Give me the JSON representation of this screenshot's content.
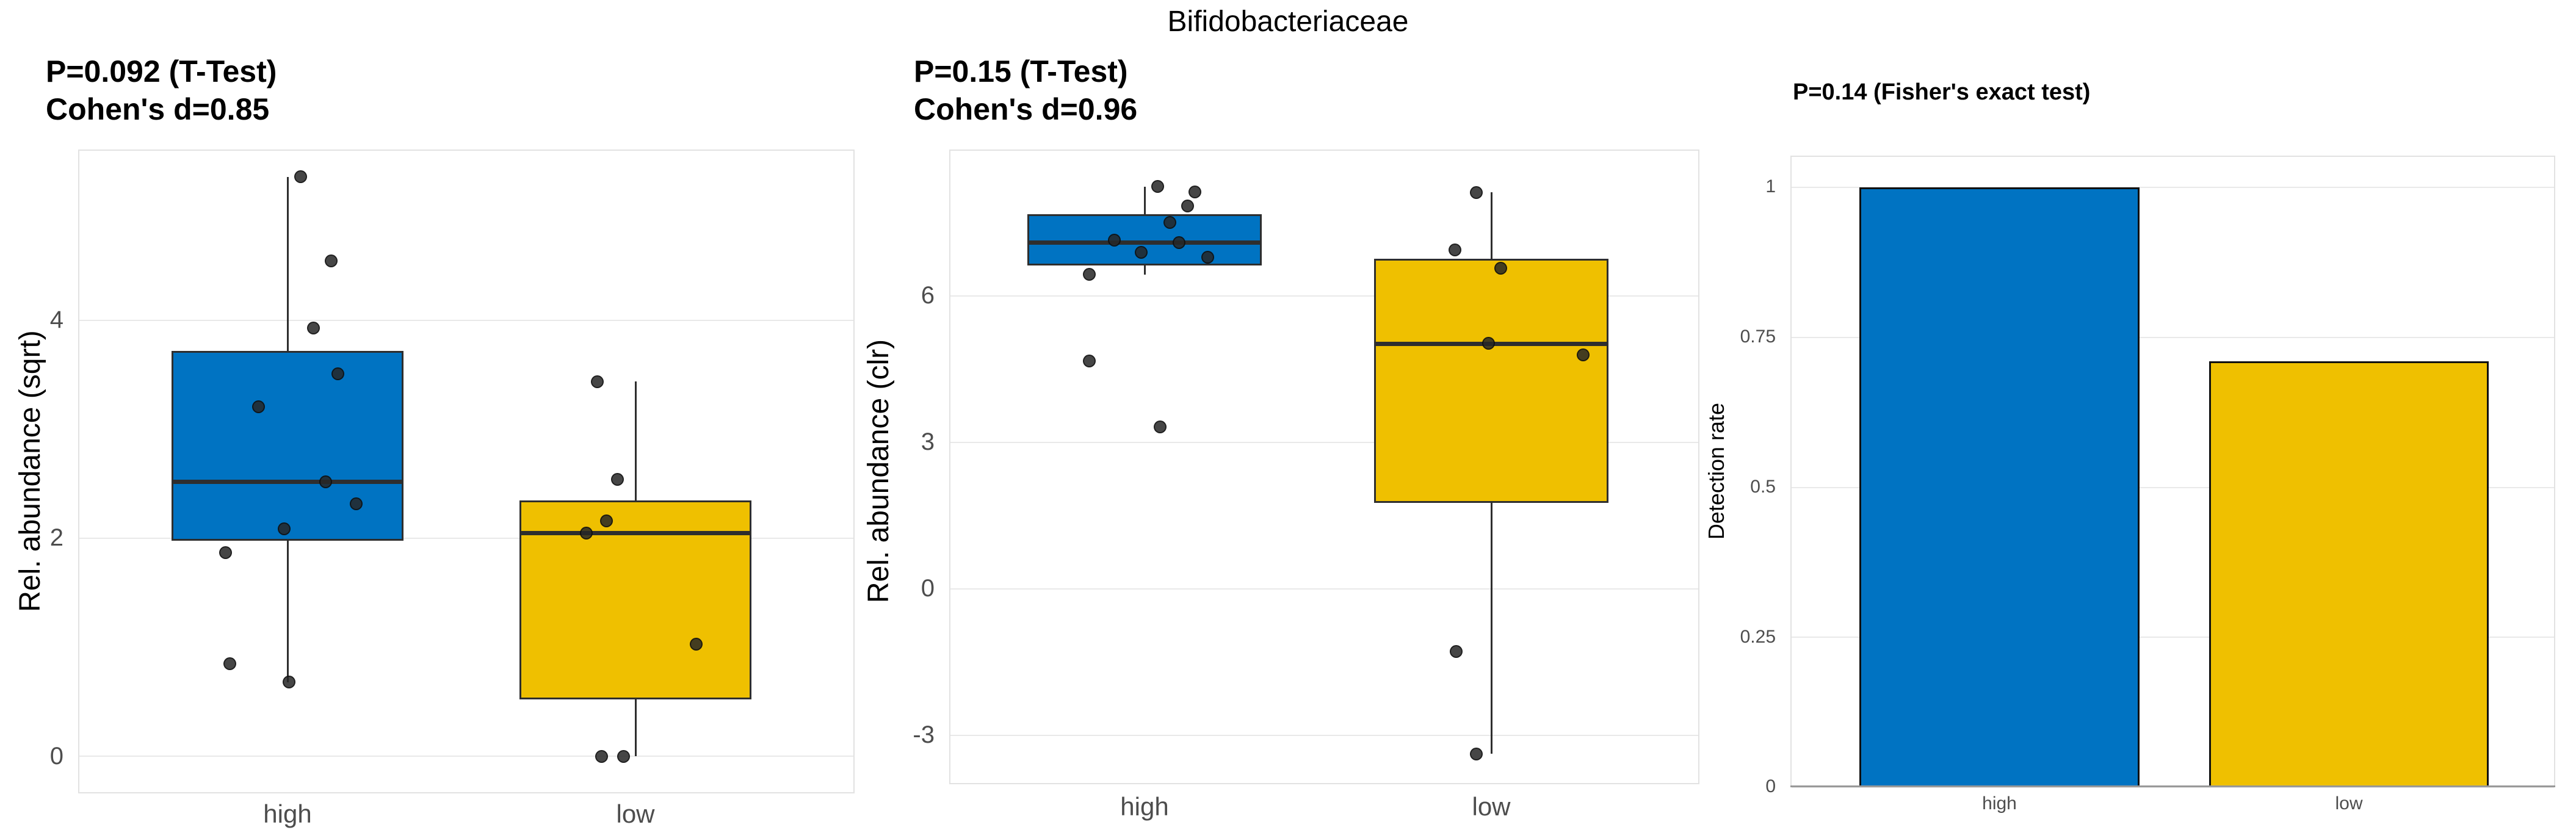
{
  "figure_title": "Bifidobacteriaceae",
  "palette": {
    "high": "#0073C2",
    "low": "#EFC000",
    "point": "#262626",
    "box_border": "#2E2E2E",
    "grid": "#E9E9E9",
    "panel_border": "#E2E2E2",
    "tick_text": "#4D4D4D",
    "axis_text": "#000000",
    "baseline": "#999999",
    "bar_border": "#111111"
  },
  "chart_data": [
    {
      "type": "box",
      "subtitle_lines": [
        "P=0.092 (T-Test)",
        "Cohen's d=0.85"
      ],
      "ylabel": "Rel. abundance (sqrt)",
      "categories": [
        "high",
        "low"
      ],
      "yticks": [
        0,
        2,
        4
      ],
      "ylim": [
        -0.34,
        5.57
      ],
      "grid": "horizontal-major",
      "groups": [
        {
          "label": "high",
          "color": "#0073C2",
          "q1": 1.98,
          "median": 2.52,
          "q3": 3.72,
          "whisker_low": 0.68,
          "whisker_high": 5.32,
          "points": [
            {
              "v": 5.32,
              "jx": 21
            },
            {
              "v": 4.55,
              "jx": 71
            },
            {
              "v": 3.93,
              "jx": 42
            },
            {
              "v": 3.51,
              "jx": 82
            },
            {
              "v": 3.21,
              "jx": -48
            },
            {
              "v": 2.52,
              "jx": 62
            },
            {
              "v": 2.32,
              "jx": 112
            },
            {
              "v": 2.09,
              "jx": -6
            },
            {
              "v": 1.87,
              "jx": -102
            },
            {
              "v": 0.85,
              "jx": -95
            },
            {
              "v": 0.68,
              "jx": 2
            }
          ]
        },
        {
          "label": "low",
          "color": "#EFC000",
          "q1": 0.52,
          "median": 2.05,
          "q3": 2.35,
          "whisker_low": 0.0,
          "whisker_high": 3.44,
          "points": [
            {
              "v": 3.44,
              "jx": -63
            },
            {
              "v": 2.54,
              "jx": -30
            },
            {
              "v": 2.16,
              "jx": -48
            },
            {
              "v": 2.05,
              "jx": -81
            },
            {
              "v": 1.03,
              "jx": 99
            },
            {
              "v": 0.0,
              "jx": -56
            },
            {
              "v": 0.0,
              "jx": -20
            }
          ]
        }
      ]
    },
    {
      "type": "box",
      "subtitle_lines": [
        "P=0.15 (T-Test)",
        "Cohen's d=0.96"
      ],
      "ylabel": "Rel. abundance (clr)",
      "categories": [
        "high",
        "low"
      ],
      "yticks": [
        6,
        3,
        0,
        -3
      ],
      "ylim": [
        -4.0,
        9.0
      ],
      "grid": "horizontal-major",
      "groups": [
        {
          "label": "high",
          "color": "#0073C2",
          "q1": 6.62,
          "median": 7.1,
          "q3": 7.68,
          "whisker_low": 6.44,
          "whisker_high": 8.24,
          "points": [
            {
              "v": 8.24,
              "jx": 21
            },
            {
              "v": 8.13,
              "jx": 82
            },
            {
              "v": 7.85,
              "jx": 70
            },
            {
              "v": 7.51,
              "jx": 41
            },
            {
              "v": 7.14,
              "jx": -50
            },
            {
              "v": 7.1,
              "jx": 56
            },
            {
              "v": 6.89,
              "jx": -6
            },
            {
              "v": 6.79,
              "jx": 103
            },
            {
              "v": 6.44,
              "jx": -91
            },
            {
              "v": 4.67,
              "jx": -91
            },
            {
              "v": 3.32,
              "jx": 25
            }
          ]
        },
        {
          "label": "low",
          "color": "#EFC000",
          "q1": 1.76,
          "median": 5.03,
          "q3": 6.76,
          "whisker_low": -3.38,
          "whisker_high": 8.12,
          "points": [
            {
              "v": 8.12,
              "jx": -25
            },
            {
              "v": 6.94,
              "jx": -60
            },
            {
              "v": 6.57,
              "jx": 15
            },
            {
              "v": 5.03,
              "jx": -5
            },
            {
              "v": 4.79,
              "jx": 150
            },
            {
              "v": -1.28,
              "jx": -58
            },
            {
              "v": -3.38,
              "jx": -25
            }
          ]
        }
      ]
    },
    {
      "type": "bar",
      "title": "P=0.14 (Fisher's exact test)",
      "ylabel": "Detection rate",
      "categories": [
        "high",
        "low"
      ],
      "yticks": [
        0,
        0.25,
        0.5,
        0.75,
        1
      ],
      "ylim": [
        0,
        1.053
      ],
      "grid": "horizontal-major",
      "bars": [
        {
          "label": "high",
          "value": 1.0,
          "color": "#0073C2"
        },
        {
          "label": "low",
          "value": 0.71,
          "color": "#EFC000"
        }
      ]
    }
  ]
}
